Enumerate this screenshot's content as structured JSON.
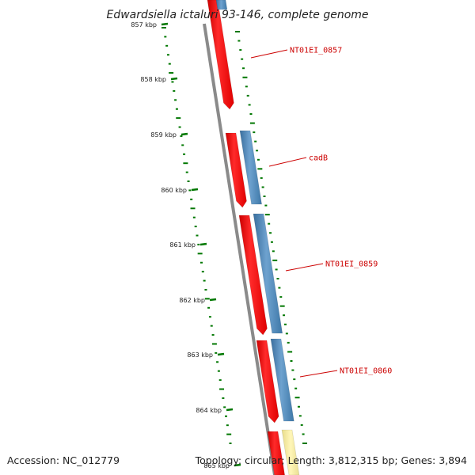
{
  "title": "Edwardsiella ictaluri 93-146, complete genome",
  "ticks": [
    "857 kbp",
    "858 kbp",
    "859 kbp",
    "860 kbp",
    "861 kbp",
    "862 kbp",
    "863 kbp",
    "864 kbp",
    "865 kbp"
  ],
  "genes": [
    {
      "label": "NT01EI_0857"
    },
    {
      "label": "cadB"
    },
    {
      "label": "NT01EI_0859"
    },
    {
      "label": "NT01EI_0860"
    }
  ],
  "footer": {
    "accession": "Accession: NC_012779",
    "summary": "Topology: circular; Length: 3,812,315 bp; Genes: 3,894"
  },
  "colors": {
    "forward_cds": "#ff0000",
    "reverse_cds": "#4682b4",
    "other_feature": "#f0e68c",
    "backbone": "#808080",
    "gc_dots": "#007700",
    "label": "#cc0000"
  }
}
